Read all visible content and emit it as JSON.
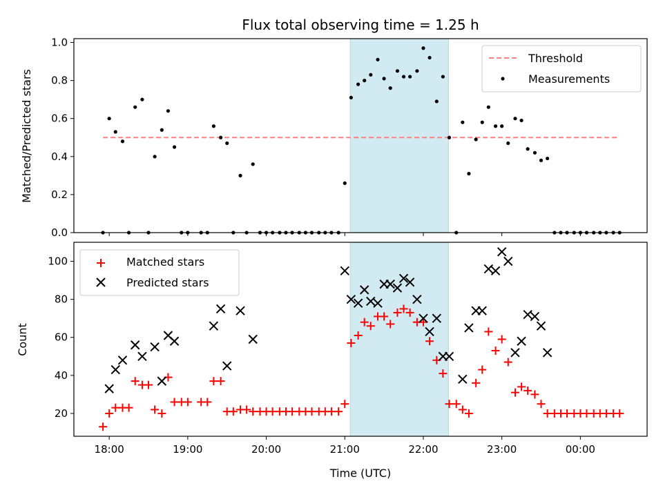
{
  "chart_data": [
    {
      "type": "scatter",
      "title": "Flux total observing time = 1.25 h",
      "ylabel": "Matched/Predicted stars",
      "xlabel": "",
      "xlim": [
        17.55,
        24.85
      ],
      "ylim": [
        0,
        1.02
      ],
      "yticks": [
        0,
        0.2,
        0.4,
        0.6,
        0.8,
        1.0
      ],
      "ytick_labels": [
        "0.0",
        "0.2",
        "0.4",
        "0.6",
        "0.8",
        "1.0"
      ],
      "xticks": [
        18,
        19,
        20,
        21,
        22,
        23,
        24
      ],
      "grid": false,
      "legend_position": "top-right",
      "shaded_region": {
        "x0": 21.07,
        "x1": 22.32,
        "color": "#add8e6"
      },
      "series": [
        {
          "name": "Threshold",
          "kind": "line",
          "style": "dashed",
          "color": "#ff7f7f",
          "x": [
            17.92,
            24.5
          ],
          "y": [
            0.5,
            0.5
          ]
        },
        {
          "name": "Measurements",
          "kind": "scatter",
          "marker": "dot",
          "color": "#000000",
          "x": [
            17.92,
            18.0,
            18.08,
            18.17,
            18.25,
            18.33,
            18.42,
            18.5,
            18.58,
            18.67,
            18.75,
            18.83,
            18.92,
            19.0,
            19.17,
            19.25,
            19.33,
            19.42,
            19.5,
            19.58,
            19.67,
            19.75,
            19.83,
            19.92,
            20.0,
            20.08,
            20.17,
            20.25,
            20.33,
            20.42,
            20.5,
            20.58,
            20.67,
            20.75,
            20.83,
            20.92,
            21.0,
            21.08,
            21.17,
            21.25,
            21.33,
            21.42,
            21.5,
            21.58,
            21.67,
            21.75,
            21.83,
            21.92,
            22.0,
            22.08,
            22.17,
            22.25,
            22.33,
            22.42,
            22.5,
            22.58,
            22.67,
            22.75,
            22.83,
            22.92,
            23.0,
            23.08,
            23.17,
            23.25,
            23.33,
            23.42,
            23.5,
            23.58,
            23.67,
            23.75,
            23.83,
            23.92,
            24.0,
            24.08,
            24.17,
            24.25,
            24.33,
            24.42,
            24.5
          ],
          "y": [
            0.0,
            0.6,
            0.53,
            0.48,
            0.0,
            0.66,
            0.7,
            0.0,
            0.4,
            0.54,
            0.64,
            0.45,
            0.0,
            0.0,
            0.0,
            0.0,
            0.56,
            0.5,
            0.47,
            0.0,
            0.3,
            0.0,
            0.36,
            0.0,
            0.0,
            0.0,
            0.0,
            0.0,
            0.0,
            0.0,
            0.0,
            0.0,
            0.0,
            0.0,
            0.0,
            0.0,
            0.26,
            0.71,
            0.78,
            0.8,
            0.83,
            0.91,
            0.81,
            0.76,
            0.85,
            0.82,
            0.82,
            0.85,
            0.97,
            0.92,
            0.69,
            0.82,
            0.5,
            0.0,
            0.58,
            0.31,
            0.49,
            0.58,
            0.66,
            0.56,
            0.56,
            0.47,
            0.6,
            0.59,
            0.44,
            0.42,
            0.38,
            0.39,
            0.0,
            0.0,
            0.0,
            0.0,
            0.0,
            0.0,
            0.0,
            0.0,
            0.0,
            0.0,
            0.0
          ]
        }
      ]
    },
    {
      "type": "scatter",
      "title": "",
      "ylabel": "Count",
      "xlabel": "Time (UTC)",
      "xlim": [
        17.55,
        24.85
      ],
      "ylim": [
        8,
        110
      ],
      "yticks": [
        20,
        40,
        60,
        80,
        100
      ],
      "ytick_labels": [
        "20",
        "40",
        "60",
        "80",
        "100"
      ],
      "xticks": [
        18,
        19,
        20,
        21,
        22,
        23,
        24
      ],
      "xtick_labels": [
        "18:00",
        "19:00",
        "20:00",
        "21:00",
        "22:00",
        "23:00",
        "00:00"
      ],
      "grid": false,
      "legend_position": "top-left",
      "shaded_region": {
        "x0": 21.07,
        "x1": 22.32,
        "color": "#add8e6"
      },
      "series": [
        {
          "name": "Matched stars",
          "kind": "scatter",
          "marker": "plus",
          "color": "#ff0000",
          "x": [
            17.92,
            18.0,
            18.08,
            18.17,
            18.25,
            18.33,
            18.42,
            18.5,
            18.58,
            18.67,
            18.75,
            18.83,
            18.92,
            19.0,
            19.17,
            19.25,
            19.33,
            19.42,
            19.5,
            19.58,
            19.67,
            19.75,
            19.83,
            19.92,
            20.0,
            20.08,
            20.17,
            20.25,
            20.33,
            20.42,
            20.5,
            20.58,
            20.67,
            20.75,
            20.83,
            20.92,
            21.0,
            21.08,
            21.17,
            21.25,
            21.33,
            21.42,
            21.5,
            21.58,
            21.67,
            21.75,
            21.83,
            21.92,
            22.0,
            22.08,
            22.17,
            22.25,
            22.33,
            22.42,
            22.5,
            22.58,
            22.67,
            22.75,
            22.83,
            22.92,
            23.0,
            23.08,
            23.17,
            23.25,
            23.33,
            23.42,
            23.5,
            23.58,
            23.67,
            23.75,
            23.83,
            23.92,
            24.0,
            24.08,
            24.17,
            24.25,
            24.33,
            24.42,
            24.5
          ],
          "y": [
            13,
            20,
            23,
            23,
            23,
            37,
            35,
            35,
            22,
            20,
            39,
            26,
            26,
            26,
            26,
            26,
            37,
            37,
            21,
            21,
            22,
            22,
            21,
            21,
            21,
            21,
            21,
            21,
            21,
            21,
            21,
            21,
            21,
            21,
            21,
            21,
            25,
            57,
            61,
            68,
            66,
            71,
            71,
            67,
            73,
            75,
            73,
            68,
            68,
            58,
            48,
            41,
            25,
            25,
            22,
            20,
            36,
            43,
            63,
            53,
            59,
            47,
            31,
            34,
            32,
            30,
            25,
            20,
            20,
            20,
            20,
            20,
            20,
            20,
            20,
            20,
            20,
            20,
            20
          ]
        },
        {
          "name": "Predicted stars",
          "kind": "scatter",
          "marker": "x",
          "color": "#000000",
          "x": [
            18.0,
            18.08,
            18.17,
            18.33,
            18.42,
            18.58,
            18.67,
            18.75,
            18.83,
            19.33,
            19.42,
            19.5,
            19.67,
            19.83,
            21.0,
            21.08,
            21.17,
            21.25,
            21.33,
            21.42,
            21.5,
            21.58,
            21.67,
            21.75,
            21.83,
            21.92,
            22.0,
            22.08,
            22.17,
            22.25,
            22.33,
            22.5,
            22.58,
            22.67,
            22.75,
            22.83,
            22.92,
            23.0,
            23.08,
            23.17,
            23.25,
            23.33,
            23.42,
            23.5,
            23.58
          ],
          "y": [
            33,
            43,
            48,
            56,
            50,
            55,
            37,
            61,
            58,
            66,
            75,
            45,
            74,
            59,
            95,
            80,
            78,
            85,
            79,
            78,
            88,
            88,
            86,
            91,
            89,
            80,
            70,
            63,
            70,
            50,
            50,
            38,
            65,
            74,
            74,
            96,
            95,
            105,
            100,
            52,
            58,
            72,
            71,
            66,
            52
          ]
        }
      ]
    }
  ]
}
